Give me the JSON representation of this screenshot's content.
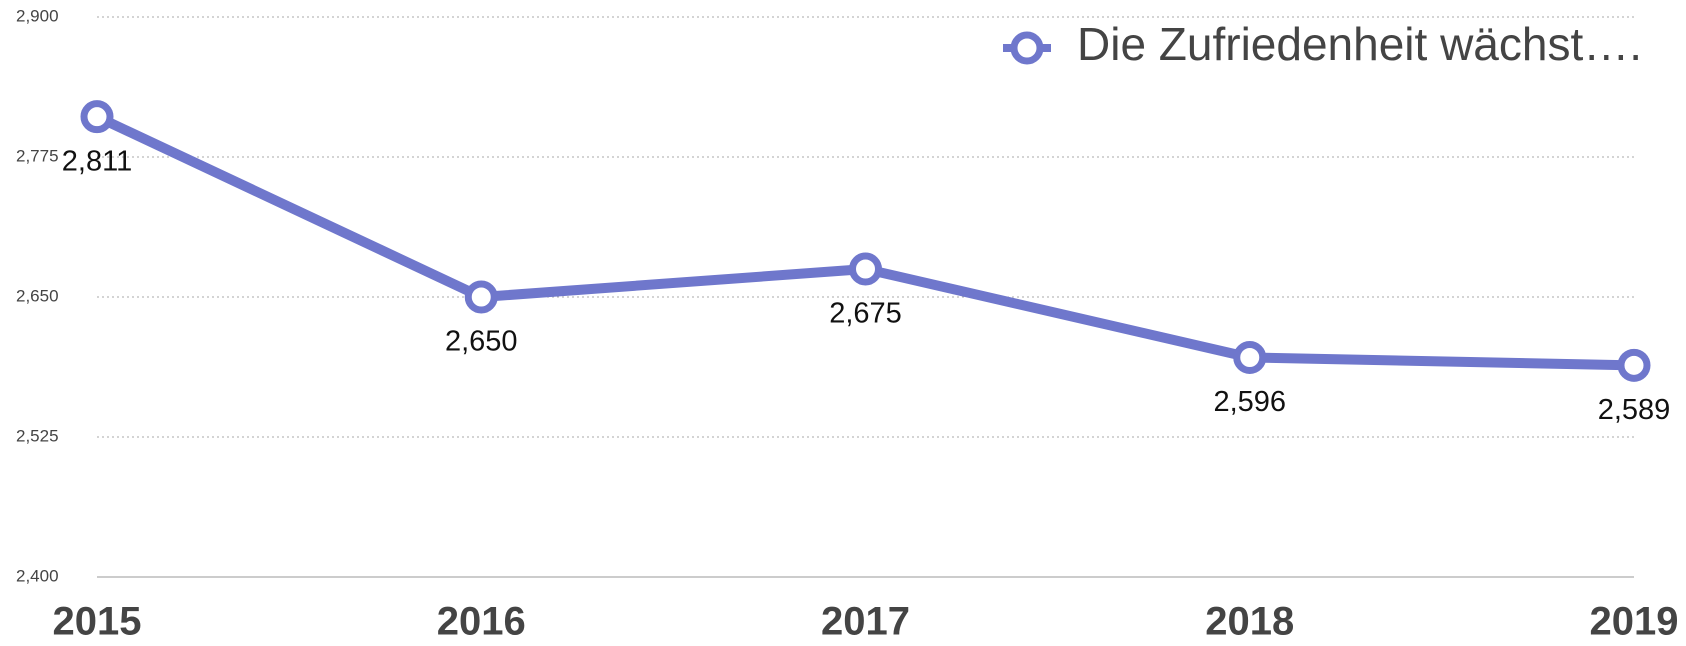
{
  "chart_data": {
    "type": "line",
    "categories": [
      "2015",
      "2016",
      "2017",
      "2018",
      "2019"
    ],
    "series": [
      {
        "name": "Die Zufriedenheit wächst….",
        "color": "#6f77cc",
        "values": [
          2.811,
          2.65,
          2.675,
          2.596,
          2.589
        ],
        "value_labels": [
          "2,811",
          "2,650",
          "2,675",
          "2,596",
          "2,589"
        ]
      }
    ],
    "ylim": [
      2.4,
      2.9
    ],
    "yticks": [
      {
        "value": 2.4,
        "label": "2,400"
      },
      {
        "value": 2.525,
        "label": "2,525"
      },
      {
        "value": 2.65,
        "label": "2,650"
      },
      {
        "value": 2.775,
        "label": "2,775"
      },
      {
        "value": 2.9,
        "label": "2,900"
      }
    ],
    "grid": true,
    "legend": "top-right"
  }
}
